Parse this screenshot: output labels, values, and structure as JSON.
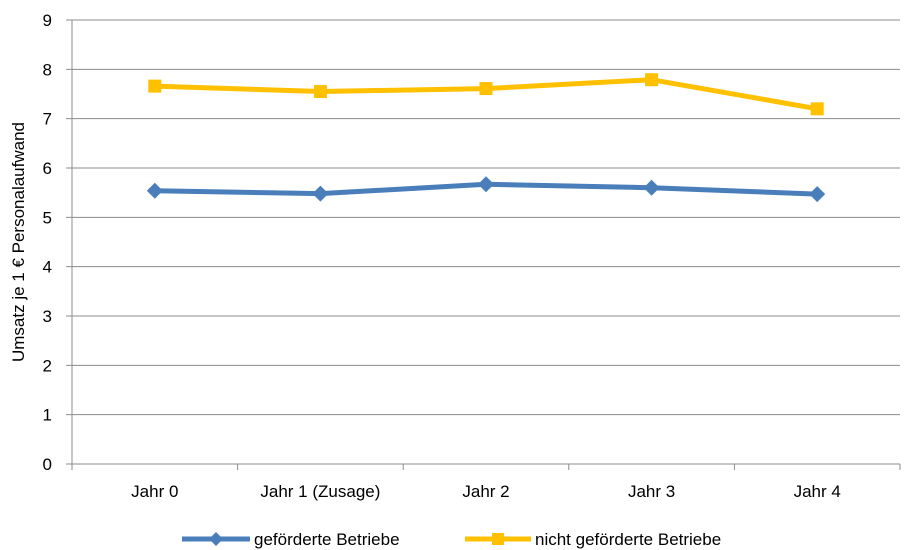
{
  "chart_data": {
    "type": "line",
    "title": "",
    "xlabel": "",
    "ylabel": "Umsatz je 1 € Personalaufwand",
    "categories": [
      "Jahr 0",
      "Jahr 1 (Zusage)",
      "Jahr 2",
      "Jahr 3",
      "Jahr 4"
    ],
    "ylim": [
      0,
      9
    ],
    "yticks": [
      "0",
      "1",
      "2",
      "3",
      "4",
      "5",
      "6",
      "7",
      "8",
      "9"
    ],
    "grid": true,
    "legend_position": "bottom",
    "series": [
      {
        "name": "geförderte Betriebe",
        "values": [
          5.54,
          5.48,
          5.67,
          5.6,
          5.47
        ],
        "color": "#4A7EBB",
        "marker": "diamond"
      },
      {
        "name": "nicht geförderte Betriebe",
        "values": [
          7.66,
          7.55,
          7.61,
          7.79,
          7.2
        ],
        "color": "#FFC000",
        "marker": "square"
      }
    ]
  }
}
